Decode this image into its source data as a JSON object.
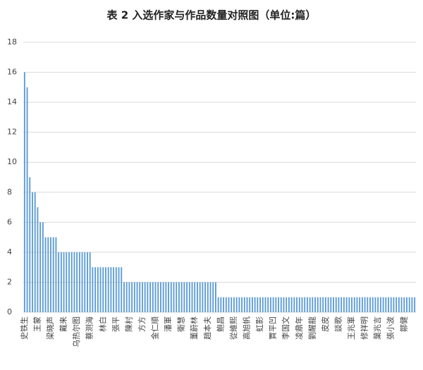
{
  "chart_data": {
    "type": "bar",
    "title": "表 2  入选作家与作品数量对照图（单位:篇）",
    "categories": [
      "史铁生",
      null,
      null,
      null,
      null,
      "王蒙",
      null,
      null,
      null,
      null,
      "梁晓声",
      null,
      null,
      null,
      null,
      "戴来",
      null,
      null,
      null,
      null,
      "乌热尔图",
      null,
      null,
      null,
      null,
      "蔡测海",
      null,
      null,
      null,
      null,
      "林白",
      null,
      null,
      null,
      null,
      "張平",
      null,
      null,
      null,
      null,
      "陳村",
      null,
      null,
      null,
      null,
      "方方",
      null,
      null,
      null,
      null,
      "金仁順",
      null,
      null,
      null,
      null,
      "潘軍",
      null,
      null,
      null,
      null,
      "衛慧",
      null,
      null,
      null,
      null,
      "董蔚林",
      null,
      null,
      null,
      null,
      "趙本夫",
      null,
      null,
      null,
      null,
      "鲍昌",
      null,
      null,
      null,
      null,
      "從維熙",
      null,
      null,
      null,
      null,
      "高旭帆",
      null,
      null,
      null,
      null,
      "虹影",
      null,
      null,
      null,
      null,
      "賈平凹",
      null,
      null,
      null,
      null,
      "李国文",
      null,
      null,
      null,
      null,
      "凌鼎年",
      null,
      null,
      null,
      null,
      "劉醒龍",
      null,
      null,
      null,
      null,
      "皮皮",
      null,
      null,
      null,
      null,
      "談歌",
      null,
      null,
      null,
      null,
      "王兆軍",
      null,
      null,
      null,
      null,
      "修祥明",
      null,
      null,
      null,
      null,
      "葉兆言",
      null,
      null,
      null,
      null,
      "張小波",
      null,
      null,
      null,
      null,
      "鄒健",
      null,
      null,
      null,
      null
    ],
    "values": [
      16,
      15,
      9,
      8,
      8,
      7,
      6,
      6,
      5,
      5,
      5,
      5,
      5,
      4,
      4,
      4,
      4,
      4,
      4,
      4,
      4,
      4,
      4,
      4,
      4,
      4,
      3,
      3,
      3,
      3,
      3,
      3,
      3,
      3,
      3,
      3,
      3,
      3,
      2,
      2,
      2,
      2,
      2,
      2,
      2,
      2,
      2,
      2,
      2,
      2,
      2,
      2,
      2,
      2,
      2,
      2,
      2,
      2,
      2,
      2,
      2,
      2,
      2,
      2,
      2,
      2,
      2,
      2,
      2,
      2,
      2,
      2,
      2,
      2,
      1,
      1,
      1,
      1,
      1,
      1,
      1,
      1,
      1,
      1,
      1,
      1,
      1,
      1,
      1,
      1,
      1,
      1,
      1,
      1,
      1,
      1,
      1,
      1,
      1,
      1,
      1,
      1,
      1,
      1,
      1,
      1,
      1,
      1,
      1,
      1,
      1,
      1,
      1,
      1,
      1,
      1,
      1,
      1,
      1,
      1,
      1,
      1,
      1,
      1,
      1,
      1,
      1,
      1,
      1,
      1,
      1,
      1,
      1,
      1,
      1,
      1,
      1,
      1,
      1,
      1,
      1,
      1,
      1,
      1,
      1,
      1,
      1,
      1,
      1,
      1
    ],
    "color": "#5b9bd5",
    "ylim": [
      0,
      18
    ],
    "yticks": [
      0,
      2,
      4,
      6,
      8,
      10,
      12,
      14,
      16,
      18
    ],
    "grid": true
  }
}
